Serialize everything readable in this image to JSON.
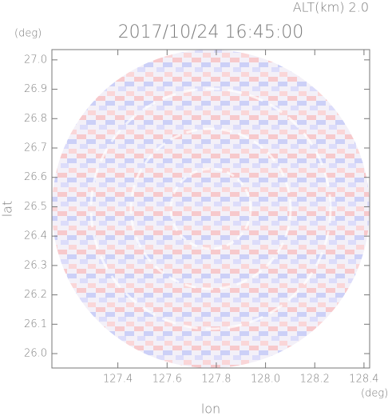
{
  "chart_data": {
    "type": "radar-field",
    "title": "2017/10/24 16:45:00",
    "subtitle": "ALT(km) 2.0",
    "x_label": "lon",
    "y_label": "lat",
    "x_unit": "(deg)",
    "y_unit": "(deg)",
    "xlim": [
      127.132,
      128.423
    ],
    "ylim": [
      25.951,
      27.035
    ],
    "xticks": [
      127.4,
      127.6,
      127.8,
      {
        "value": 128.0,
        "label": "128.0"
      },
      128.2,
      128.4
    ],
    "yticks": [
      {
        "value": 26.0,
        "label": "26.0"
      },
      26.1,
      26.2,
      26.3,
      26.4,
      26.5,
      26.6,
      26.7,
      26.8,
      26.9,
      {
        "value": 27.0,
        "label": "27.0"
      }
    ]
  }
}
